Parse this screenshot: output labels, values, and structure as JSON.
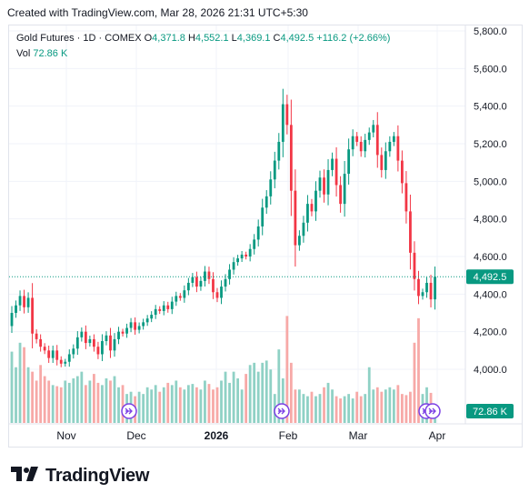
{
  "header": {
    "created": "Created with TradingView.com, Mar 28, 2026 21:31 UTC+5:30"
  },
  "legend": {
    "symbol": "Gold Futures · 1D · COMEX",
    "o_label": "O",
    "o_value": "4,371.8",
    "h_label": "H",
    "h_value": "4,552.1",
    "l_label": "L",
    "l_value": "4,369.1",
    "c_label": "C",
    "c_value": "4,492.5",
    "change": "+116.2 (+2.66%)",
    "vol_label": "Vol",
    "vol_value": "72.86 K"
  },
  "price_badge": "4,492.5",
  "volume_badge": "72.86 K",
  "brand": {
    "name": "TradingView"
  },
  "colors": {
    "up": "#089981",
    "down": "#f23645",
    "up_vol": "#8fd1c5",
    "down_vol": "#f7a9a7",
    "grid": "#f0f3fa",
    "text": "#131722",
    "badge": "#089981"
  },
  "icons": [
    "tradingview-logo-icon",
    "dividend-arrow-icon"
  ],
  "chart_data": {
    "type": "candlestick",
    "title": "Gold Futures · 1D · COMEX",
    "y_ticks": [
      "5,800.0",
      "5,600.0",
      "5,400.0",
      "5,200.0",
      "5,000.0",
      "4,800.0",
      "4,600.0",
      "4,400.0",
      "4,200.0",
      "4,000.0"
    ],
    "ylim": [
      3975,
      5830
    ],
    "x_ticks": [
      "Nov",
      "Dec",
      "2026",
      "Feb",
      "Mar",
      "Apr"
    ],
    "last_price": 4492.5,
    "close": [
      4300,
      4340,
      4390,
      4330,
      4380,
      4190,
      4160,
      4120,
      4100,
      4060,
      4100,
      4050,
      4030,
      4040,
      4080,
      4110,
      4170,
      4200,
      4140,
      4160,
      4120,
      4080,
      4150,
      4180,
      4100,
      4160,
      4200,
      4190,
      4220,
      4250,
      4210,
      4230,
      4250,
      4270,
      4290,
      4320,
      4310,
      4340,
      4320,
      4360,
      4390,
      4380,
      4420,
      4460,
      4490,
      4440,
      4470,
      4520,
      4480,
      4410,
      4380,
      4440,
      4480,
      4530,
      4570,
      4590,
      4610,
      4600,
      4640,
      4690,
      4760,
      4860,
      4920,
      5010,
      5110,
      5210,
      5410,
      5300,
      4950,
      4660,
      4710,
      4780,
      4880,
      4840,
      4950,
      5020,
      4930,
      5060,
      5120,
      4980,
      4880,
      5040,
      5170,
      5240,
      5210,
      5160,
      5220,
      5260,
      5300,
      5140,
      5060,
      5160,
      5210,
      5240,
      5110,
      4990,
      4840,
      4620,
      4480,
      4390,
      4410,
      4460,
      4372,
      4492.5
    ],
    "volume_k": [
      320,
      250,
      360,
      340,
      250,
      230,
      190,
      260,
      210,
      190,
      170,
      165,
      160,
      190,
      180,
      200,
      210,
      230,
      170,
      190,
      220,
      180,
      170,
      200,
      190,
      210,
      160,
      170,
      130,
      140,
      120,
      140,
      130,
      160,
      150,
      170,
      140,
      160,
      180,
      170,
      190,
      160,
      150,
      170,
      175,
      160,
      150,
      190,
      175,
      150,
      160,
      190,
      230,
      180,
      230,
      200,
      150,
      220,
      260,
      270,
      230,
      270,
      280,
      240,
      130,
      330,
      200,
      480,
      270,
      150,
      150,
      130,
      120,
      140,
      120,
      130,
      160,
      180,
      150,
      120,
      110,
      120,
      130,
      110,
      140,
      120,
      130,
      250,
      150,
      160,
      140,
      150,
      160,
      150,
      170,
      130,
      125,
      140,
      360,
      470,
      130,
      160,
      135,
      72.86
    ]
  }
}
